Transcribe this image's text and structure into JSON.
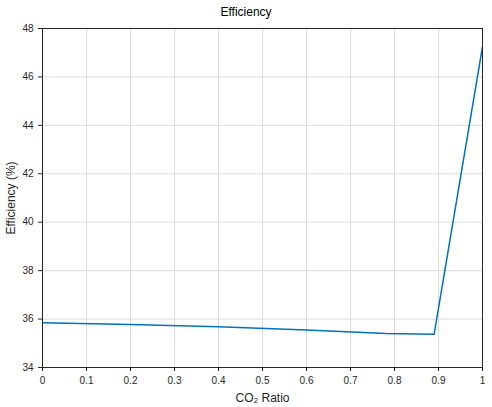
{
  "chart_data": {
    "type": "line",
    "title": "Efficiency",
    "x_label": "CO₂ Ratio",
    "y_label": "Efficiency (%)",
    "x": [
      0,
      0.2,
      0.4,
      0.6,
      0.78,
      0.89,
      1
    ],
    "values": [
      35.85,
      35.78,
      35.68,
      35.55,
      35.4,
      35.37,
      47.25
    ],
    "color": "#0072bd",
    "xlim": [
      0,
      1
    ],
    "xticks": [
      0,
      0.1,
      0.2,
      0.3,
      0.4,
      0.5,
      0.6,
      0.7,
      0.8,
      0.9,
      1
    ],
    "ylim": [
      34,
      48
    ],
    "yticks": [
      34,
      36,
      38,
      40,
      42,
      44,
      46,
      48
    ],
    "grid": true
  }
}
